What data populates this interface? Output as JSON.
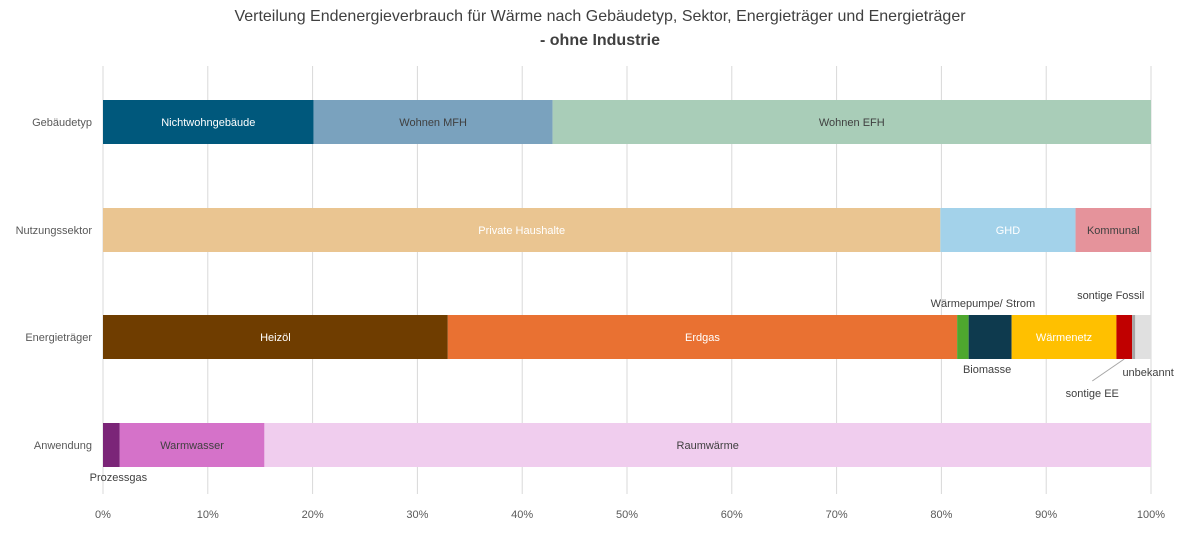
{
  "chart_data": {
    "type": "bar",
    "stacked": "100%",
    "orientation": "horizontal",
    "title": "Verteilung Endenergieverbrauch für Wärme nach Gebäudetyp, Sektor, Energieträger und Energieträger",
    "subtitle": "- ohne Industrie",
    "xlim": [
      0,
      100
    ],
    "x_ticks": [
      "0%",
      "10%",
      "20%",
      "30%",
      "40%",
      "50%",
      "60%",
      "70%",
      "80%",
      "90%",
      "100%"
    ],
    "grid": true,
    "legend": "none",
    "categories": [
      "Gebäudetyp",
      "Nutzungssektor",
      "Energieträger",
      "Anwendung"
    ],
    "rows": [
      {
        "category": "Gebäudetyp",
        "segments": [
          {
            "label": "Nichtwohngebäude",
            "value": 20.1,
            "color": "#00587c",
            "label_color": "#ffffff",
            "label_pos": "inside"
          },
          {
            "label": "Wohnen MFH",
            "value": 22.8,
            "color": "#7aa2be",
            "label_color": "#404040",
            "label_pos": "inside"
          },
          {
            "label": "Wohnen EFH",
            "value": 57.1,
            "color": "#a9cdb8",
            "label_color": "#404040",
            "label_pos": "inside"
          }
        ]
      },
      {
        "category": "Nutzungssektor",
        "segments": [
          {
            "label": "Private Haushalte",
            "value": 79.9,
            "color": "#eac591",
            "label_color": "#ffffff",
            "label_pos": "inside"
          },
          {
            "label": "GHD",
            "value": 12.9,
            "color": "#a3d2ea",
            "label_color": "#ffffff",
            "label_pos": "inside"
          },
          {
            "label": "Kommunal",
            "value": 7.2,
            "color": "#e5939b",
            "label_color": "#404040",
            "label_pos": "inside"
          }
        ]
      },
      {
        "category": "Energieträger",
        "segments": [
          {
            "label": "Heizöl",
            "value": 32.9,
            "color": "#6f3d00",
            "label_color": "#ffffff",
            "label_pos": "inside"
          },
          {
            "label": "Erdgas",
            "value": 48.6,
            "color": "#e97132",
            "label_color": "#ffffff",
            "label_pos": "inside"
          },
          {
            "label": "Wärmepumpe/ Strom",
            "value": 1.1,
            "color": "#4ea72e",
            "label_color": "#404040",
            "label_pos": "above"
          },
          {
            "label": "Biomasse",
            "value": 4.1,
            "color": "#0e3a4e",
            "label_color": "#404040",
            "label_pos": "below"
          },
          {
            "label": "Wärmenetz",
            "value": 10.0,
            "color": "#ffc000",
            "label_color": "#ffffff",
            "label_pos": "inside"
          },
          {
            "label": "sontige EE",
            "value": 1.5,
            "color": "#c00000",
            "label_color": "#404040",
            "label_pos": "below-leader"
          },
          {
            "label": "sontige Fossil",
            "value": 0.3,
            "color": "#a6a6a6",
            "label_color": "#404040",
            "label_pos": "above"
          },
          {
            "label": "unbekannt",
            "value": 1.5,
            "color": "#e0e0e0",
            "label_color": "#404040",
            "label_pos": "below"
          }
        ]
      },
      {
        "category": "Anwendung",
        "segments": [
          {
            "label": "Prozessgas",
            "value": 1.6,
            "color": "#7b2578",
            "label_color": "#404040",
            "label_pos": "below"
          },
          {
            "label": "Warmwasser",
            "value": 13.8,
            "color": "#d572c9",
            "label_color": "#404040",
            "label_pos": "inside"
          },
          {
            "label": "Raumwärme",
            "value": 84.6,
            "color": "#f0cdee",
            "label_color": "#404040",
            "label_pos": "inside"
          }
        ]
      }
    ]
  }
}
